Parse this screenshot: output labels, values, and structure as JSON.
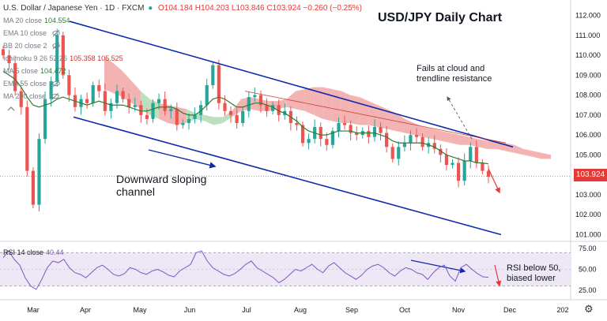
{
  "header": {
    "symbol": "U.S. Dollar / Japanese Yen · 1D · FXCM",
    "ohlc": "O104.184 H104.203 L103.846 C103.924 −0.260 (−0.25%)"
  },
  "indicators": [
    {
      "label": "MA 20 close",
      "value": "104.554",
      "color": "#2e7d32"
    },
    {
      "label": "EMA 10 close",
      "value": "",
      "color": "#787b86"
    },
    {
      "label": "BB 20 close 2",
      "value": "",
      "color": "#787b86"
    },
    {
      "label": "Ichimoku 9 26 52 26",
      "value": "105.358  105.525",
      "color": "#d32f2f"
    },
    {
      "label": "MA 5 close",
      "value": "104.472",
      "color": "#2e7d32"
    },
    {
      "label": "EMA 55 close",
      "value": "",
      "color": "#787b86"
    },
    {
      "label": "MA 200 close",
      "value": "",
      "color": "#787b86"
    }
  ],
  "annotations": {
    "title": "USD/JPY Daily Chart",
    "fails_line1": "Fails at cloud and",
    "fails_line2": "trendline resistance",
    "channel_line1": "Downward sloping",
    "channel_line2": "channel",
    "rsi_line1": "RSI below 50,",
    "rsi_line2": "biased lower"
  },
  "rsi_header": {
    "label": "RSI 14 close",
    "value": "40.44"
  },
  "last_price": "103.924",
  "colors": {
    "up": "#26a69a",
    "down": "#ef5350",
    "ma": "#2e7d32",
    "cloud_bull": "#a5d6a7",
    "cloud_bear": "#ef9a9a",
    "channel": "#0d2ba8",
    "rsi": "#7e57c2",
    "rsi_band": "#ede7f6"
  },
  "chart_data": [
    {
      "type": "candlestick",
      "title": "USD/JPY Daily Chart",
      "x_ticks": [
        "Mar",
        "Apr",
        "May",
        "Jun",
        "Jul",
        "Aug",
        "Sep",
        "Oct",
        "Nov",
        "Dec",
        "202"
      ],
      "y_ticks": [
        101.0,
        102.0,
        103.0,
        104.0,
        105.0,
        106.0,
        107.0,
        108.0,
        109.0,
        110.0,
        111.0,
        112.0
      ],
      "ylim": [
        100.6,
        112.5
      ],
      "closes": [
        110.0,
        109.6,
        108.2,
        107.4,
        104.2,
        102.5,
        105.8,
        107.8,
        108.7,
        111.0,
        109.0,
        108.0,
        107.4,
        107.8,
        107.6,
        108.5,
        108.2,
        107.2,
        107.6,
        108.2,
        107.8,
        107.4,
        107.5,
        107.0,
        106.8,
        107.6,
        107.8,
        107.2,
        107.3,
        106.5,
        106.6,
        106.8,
        107.0,
        107.5,
        108.5,
        109.5,
        107.6,
        107.2,
        107.0,
        106.6,
        107.2,
        107.9,
        108.0,
        107.5,
        107.2,
        107.5,
        107.0,
        107.2,
        106.6,
        106.5,
        105.6,
        105.8,
        106.4,
        105.8,
        105.5,
        106.2,
        106.6,
        106.5,
        106.1,
        106.0,
        106.2,
        105.9,
        106.4,
        106.1,
        105.4,
        104.8,
        105.4,
        105.6,
        106.0,
        105.9,
        105.4,
        105.6,
        105.3,
        105.0,
        104.5,
        104.6,
        103.7,
        104.7,
        105.4,
        104.6,
        104.2,
        103.9
      ],
      "ma_20": [
        109.2,
        109.0,
        108.8,
        108.4,
        107.9,
        107.5,
        107.4,
        107.5,
        107.6,
        107.8,
        107.9,
        107.8,
        107.7,
        107.6,
        107.5,
        107.6,
        107.7,
        107.6,
        107.5,
        107.5,
        107.5,
        107.4,
        107.3,
        107.2,
        107.2,
        107.3,
        107.4,
        107.4,
        107.4,
        107.3,
        107.1,
        107.0,
        107.0,
        107.2,
        107.5,
        107.8,
        107.9,
        107.8,
        107.6,
        107.4,
        107.4,
        107.5,
        107.6,
        107.6,
        107.5,
        107.4,
        107.2,
        107.1,
        106.9,
        106.7,
        106.4,
        106.2,
        106.1,
        106.0,
        106.0,
        106.1,
        106.2,
        106.2,
        106.2,
        106.1,
        106.1,
        106.1,
        106.1,
        106.0,
        105.9,
        105.7,
        105.6,
        105.6,
        105.6,
        105.6,
        105.6,
        105.5,
        105.4,
        105.2,
        105.0,
        104.9,
        104.8,
        104.7,
        104.7,
        104.6,
        104.6,
        104.55
      ],
      "cloud_top": [
        109.9,
        109.6,
        109.2,
        108.7,
        108.2,
        107.8,
        107.6,
        107.5,
        107.4,
        107.3,
        107.1,
        107.0,
        106.9,
        106.9,
        107.2,
        107.8,
        107.9,
        107.8,
        107.7,
        107.7,
        107.8,
        108.2,
        108.3,
        108.4,
        108.4,
        108.3,
        108.2,
        108.0,
        107.9,
        107.7,
        107.5,
        107.3,
        107.1,
        106.8,
        106.6,
        106.4,
        106.3,
        106.2,
        106.1,
        106.0,
        105.9,
        105.8,
        105.7,
        105.7,
        105.6,
        105.5,
        105.3,
        105.2,
        105.1,
        105.0
      ],
      "cloud_bottom": [
        108.3,
        108.1,
        107.9,
        107.6,
        107.3,
        107.0,
        106.8,
        106.6,
        106.5,
        106.6,
        106.8,
        106.7,
        106.5,
        106.6,
        106.9,
        107.2,
        107.3,
        107.2,
        107.2,
        107.3,
        107.4,
        107.3,
        107.2,
        107.0,
        106.8,
        106.7,
        106.6,
        106.6,
        106.5,
        106.5,
        106.4,
        106.3,
        106.2,
        106.1,
        106.0,
        105.9,
        105.8,
        105.7,
        105.6,
        105.5,
        105.5,
        105.4,
        105.3,
        105.3,
        105.2,
        105.1,
        105.0,
        104.9,
        104.8,
        104.8
      ],
      "channel": {
        "upper": {
          "start_date": "mid-Mar",
          "start_value": 111.7,
          "end_date": "end-Nov",
          "end_value": 105.4
        },
        "lower": {
          "start_date": "end-Mar",
          "start_value": 106.9,
          "end_date": "early-Dec",
          "end_value": 101.0
        }
      },
      "resistance_line": {
        "start_value": 108.2,
        "end_value": 105.6
      },
      "last_price": 103.924
    },
    {
      "type": "line",
      "name": "RSI 14 close",
      "y_ticks": [
        25.0,
        50.0,
        75.0
      ],
      "ylim": [
        20,
        76
      ],
      "bands": [
        30,
        70
      ],
      "values": [
        64,
        72,
        62,
        55,
        40,
        30,
        26,
        38,
        52,
        60,
        58,
        62,
        52,
        46,
        44,
        40,
        46,
        52,
        55,
        50,
        44,
        42,
        45,
        52,
        50,
        46,
        44,
        48,
        50,
        47,
        43,
        41,
        48,
        52,
        56,
        70,
        72,
        60,
        52,
        48,
        44,
        42,
        45,
        50,
        56,
        60,
        52,
        48,
        44,
        40,
        34,
        38,
        44,
        50,
        48,
        52,
        56,
        50,
        46,
        54,
        58,
        52,
        46,
        42,
        38,
        43,
        50,
        54,
        56,
        52,
        46,
        42,
        48,
        52,
        50,
        46,
        44,
        38,
        46,
        52,
        55,
        42,
        36,
        52,
        56,
        50,
        45,
        41,
        40.44
      ],
      "last_value": 40.44
    }
  ]
}
